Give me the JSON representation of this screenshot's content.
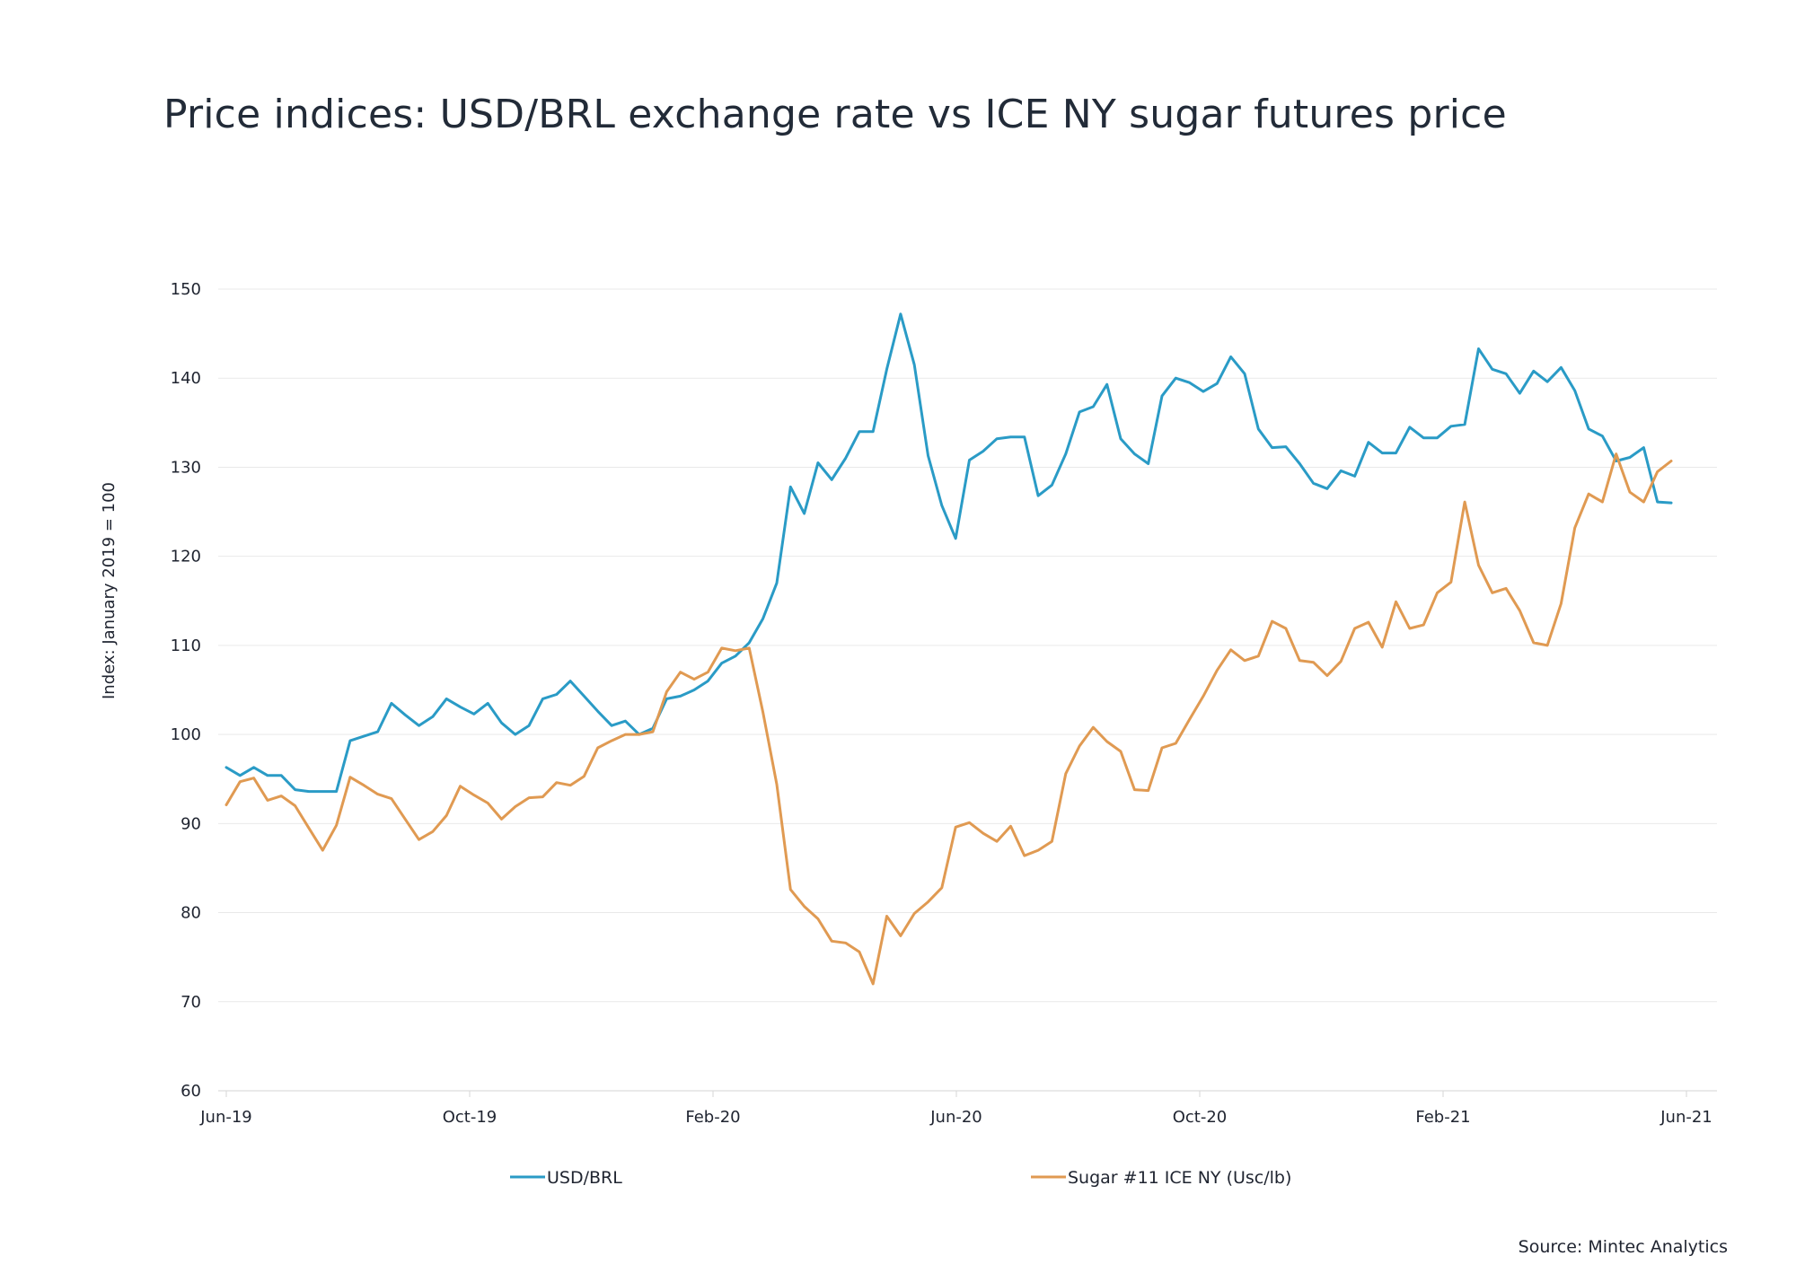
{
  "title": "Price indices: USD/BRL exchange rate vs ICE NY sugar futures price",
  "source": "Source: Mintec Analytics",
  "chart_data": {
    "type": "line",
    "title": "Price indices: USD/BRL exchange rate vs ICE NY sugar futures price",
    "ylabel": "Index: January 2019 = 100",
    "xlabel": "",
    "ylim": [
      60,
      150
    ],
    "yticks": [
      60,
      70,
      80,
      90,
      100,
      110,
      120,
      130,
      140,
      150
    ],
    "x_tick_labels": [
      "Jun-19",
      "Oct-19",
      "Feb-20",
      "Jun-20",
      "Oct-20",
      "Feb-21",
      "Jun-21"
    ],
    "x_start": "Jun-19",
    "x_end": "Jun-21",
    "grid": "horizontal",
    "legend": "bottom",
    "series": [
      {
        "name": "USD/BRL",
        "color": "#2a9bc6",
        "values": [
          96.3,
          95.4,
          96.3,
          95.4,
          95.4,
          93.8,
          93.6,
          93.6,
          93.6,
          99.3,
          99.8,
          100.3,
          103.5,
          102.2,
          101.0,
          102.0,
          104.0,
          103.1,
          102.3,
          103.5,
          101.3,
          100.0,
          101.0,
          104.0,
          104.5,
          106.0,
          104.3,
          102.6,
          101.0,
          101.5,
          100.0,
          100.7,
          104.0,
          104.3,
          105.0,
          106.0,
          108.0,
          108.8,
          110.3,
          113.0,
          117.0,
          127.8,
          124.8,
          130.5,
          128.6,
          131.0,
          134.0,
          134.0,
          141.0,
          147.2,
          141.5,
          131.3,
          125.7,
          122.0,
          130.8,
          131.8,
          133.2,
          133.4,
          133.4,
          126.8,
          128.0,
          131.5,
          136.2,
          136.8,
          139.3,
          133.2,
          131.5,
          130.4,
          138.0,
          140.0,
          139.5,
          138.5,
          139.4,
          142.4,
          140.5,
          134.3,
          132.2,
          132.3,
          130.4,
          128.2,
          127.6,
          129.6,
          129.0,
          132.8,
          131.6,
          131.6,
          134.5,
          133.3,
          133.3,
          134.6,
          134.8,
          143.3,
          141.0,
          140.5,
          138.3,
          140.8,
          139.6,
          141.2,
          138.6,
          134.3,
          133.5,
          130.7,
          131.1,
          132.2,
          126.1,
          126.0
        ]
      },
      {
        "name": "Sugar #11 ICE  NY (Usc/lb)",
        "color": "#e09a52",
        "values": [
          92.1,
          94.7,
          95.1,
          92.6,
          93.1,
          92.0,
          89.5,
          87.0,
          89.8,
          95.2,
          94.3,
          93.3,
          92.8,
          90.5,
          88.2,
          89.1,
          90.9,
          94.2,
          93.2,
          92.3,
          90.5,
          91.9,
          92.9,
          93.0,
          94.6,
          94.3,
          95.3,
          98.5,
          99.3,
          100.0,
          100.0,
          100.3,
          104.8,
          107.0,
          106.2,
          107.0,
          109.7,
          109.4,
          109.7,
          102.5,
          94.4,
          82.6,
          80.7,
          79.3,
          76.8,
          76.6,
          75.6,
          72.0,
          79.6,
          77.4,
          79.9,
          81.2,
          82.8,
          89.6,
          90.1,
          88.9,
          88.0,
          89.7,
          86.4,
          87.0,
          88.0,
          95.6,
          98.7,
          100.8,
          99.2,
          98.1,
          93.8,
          93.7,
          98.5,
          99.0,
          101.7,
          104.3,
          107.2,
          109.5,
          108.3,
          108.8,
          112.7,
          111.9,
          108.3,
          108.1,
          106.6,
          108.2,
          111.9,
          112.6,
          109.8,
          114.9,
          111.9,
          112.3,
          115.9,
          117.1,
          126.1,
          119.0,
          115.9,
          116.4,
          113.9,
          110.3,
          110.0,
          114.7,
          123.2,
          127.0,
          126.1,
          131.5,
          127.2,
          126.1,
          129.5,
          130.7
        ]
      }
    ]
  }
}
